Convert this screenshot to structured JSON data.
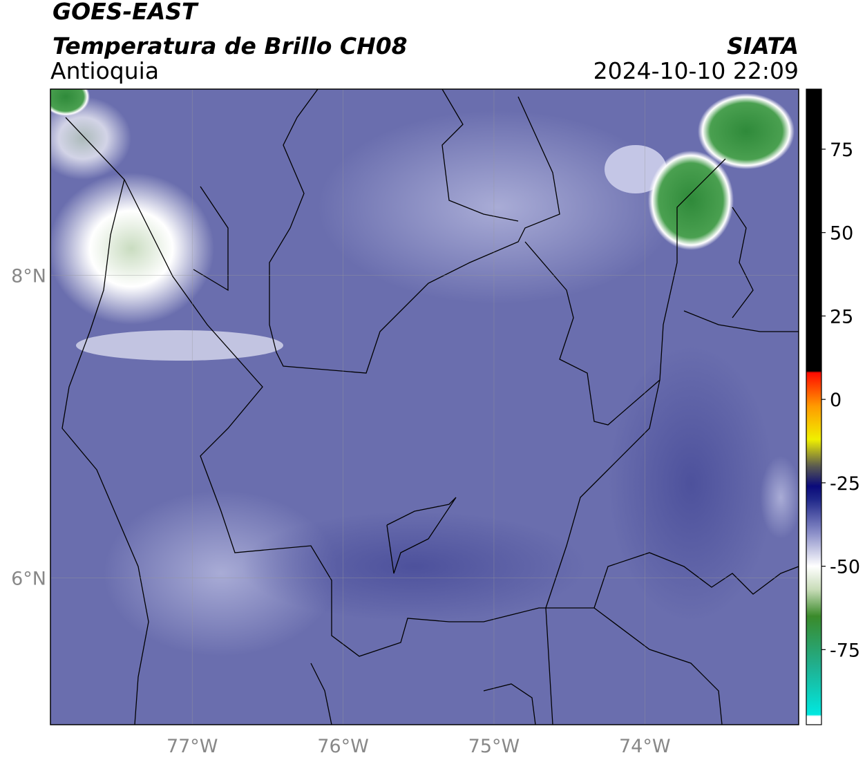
{
  "header": {
    "title": "GOES-EAST",
    "subtitle": "Temperatura de Brillo CH08",
    "region": "Antioquia",
    "source": "SIATA",
    "datetime": "2024-10-10 22:09"
  },
  "map": {
    "xlim": [
      -77.94,
      -72.98
    ],
    "ylim": [
      5.03,
      9.23
    ],
    "xticks": [
      {
        "value": -77,
        "label": "77°W"
      },
      {
        "value": -76,
        "label": "76°W"
      },
      {
        "value": -75,
        "label": "75°W"
      },
      {
        "value": -74,
        "label": "74°W"
      }
    ],
    "yticks": [
      {
        "value": 8,
        "label": "8°N"
      },
      {
        "value": 6,
        "label": "6°N"
      }
    ],
    "grid": true,
    "background": "#6a6eae"
  },
  "colorbar": {
    "lim": [
      -97.5,
      93
    ],
    "ticks": [
      75,
      50,
      25,
      0,
      -25,
      -50,
      -75
    ],
    "stops": [
      {
        "value": -97.5,
        "color": "#ffffff"
      },
      {
        "value": -95,
        "color": "#ffffff"
      },
      {
        "value": -94.5,
        "color": "#00e8e0"
      },
      {
        "value": -80,
        "color": "#20b090"
      },
      {
        "value": -65,
        "color": "#3a8a2a"
      },
      {
        "value": -57,
        "color": "#c8dcb8"
      },
      {
        "value": -50,
        "color": "#ffffff"
      },
      {
        "value": -40,
        "color": "#8a8ec8"
      },
      {
        "value": -30,
        "color": "#20288a"
      },
      {
        "value": -26,
        "color": "#0a0a7a"
      },
      {
        "value": -20,
        "color": "#5a5a50"
      },
      {
        "value": -12,
        "color": "#f0f000"
      },
      {
        "value": -2,
        "color": "#ff9a00"
      },
      {
        "value": 8,
        "color": "#ff0a00"
      },
      {
        "value": 8.5,
        "color": "#000000"
      },
      {
        "value": 93,
        "color": "#000000"
      }
    ]
  }
}
